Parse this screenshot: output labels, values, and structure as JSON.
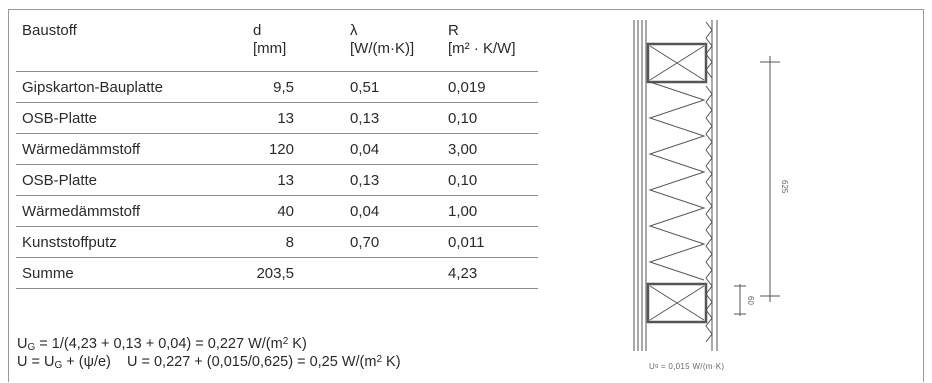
{
  "table": {
    "headers": [
      {
        "name": "Baustoff",
        "unit": ""
      },
      {
        "name": "d",
        "unit": "[mm]"
      },
      {
        "name": "λ",
        "unit": "[W/(m·K)]"
      },
      {
        "name": "R",
        "unit": "[m² · K/W]"
      }
    ],
    "rows": [
      {
        "material": "Gipskarton-Bauplatte",
        "d": "9,5",
        "lambda": "0,51",
        "r": "0,019"
      },
      {
        "material": "OSB-Platte",
        "d": "13",
        "lambda": "0,13",
        "r": "0,10"
      },
      {
        "material": "Wärmedämmstoff",
        "d": "120",
        "lambda": "0,04",
        "r": "3,00"
      },
      {
        "material": "OSB-Platte",
        "d": "13",
        "lambda": "0,13",
        "r": "0,10"
      },
      {
        "material": "Wärmedämmstoff",
        "d": "40",
        "lambda": "0,04",
        "r": "1,00"
      },
      {
        "material": "Kunststoffputz",
        "d": "8",
        "lambda": "0,70",
        "r": "0,011"
      },
      {
        "material": "Summe",
        "d": "203,5",
        "lambda": "",
        "r": "4,23"
      }
    ]
  },
  "formulas": {
    "line1": {
      "u": "U",
      "sub": "G",
      "rest": " = 1/(4,23 + 0,13 + 0,04) = 0,227 W/(m",
      "sup": "2",
      "end": " K)"
    },
    "line2": {
      "a": "U = U",
      "sub": "G",
      "b": " + (ψ/e)    U = 0,227 + (0,015/0,625) = 0,25 W/(m",
      "sup": "2",
      "end": " K)"
    }
  },
  "drawing": {
    "dim_main": "625",
    "dim_small": "60",
    "caption": "Uᵍ = 0,015 W/(m·K)"
  },
  "colors": {
    "line": "#8a8a8a",
    "text": "#2a2a2a",
    "drawing": "#555555"
  }
}
